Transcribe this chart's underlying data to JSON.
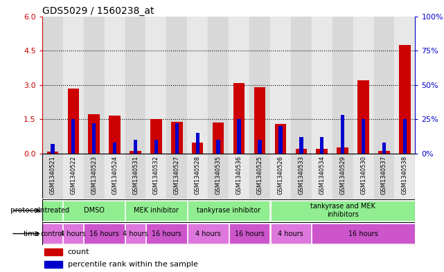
{
  "title": "GDS5029 / 1560238_at",
  "samples": [
    "GSM1340521",
    "GSM1340522",
    "GSM1340523",
    "GSM1340524",
    "GSM1340531",
    "GSM1340532",
    "GSM1340527",
    "GSM1340528",
    "GSM1340535",
    "GSM1340536",
    "GSM1340525",
    "GSM1340526",
    "GSM1340533",
    "GSM1340534",
    "GSM1340529",
    "GSM1340530",
    "GSM1340537",
    "GSM1340538"
  ],
  "count_values": [
    0.08,
    2.85,
    1.72,
    1.65,
    0.12,
    1.5,
    1.4,
    0.5,
    1.35,
    3.1,
    2.9,
    1.3,
    0.2,
    0.2,
    0.28,
    3.2,
    0.12,
    4.75
  ],
  "percentile_values": [
    7,
    25,
    22,
    8,
    10,
    10,
    22,
    15,
    10,
    25,
    10,
    20,
    12,
    12,
    28,
    25,
    8,
    25
  ],
  "ylim_left": [
    0,
    6
  ],
  "ylim_right": [
    0,
    100
  ],
  "yticks_left": [
    0,
    1.5,
    3.0,
    4.5,
    6
  ],
  "yticks_right": [
    0,
    25,
    50,
    75,
    100
  ],
  "bar_color_red": "#cc0000",
  "bar_color_blue": "#0000cc",
  "bg_color": "#ffffff",
  "protocol_groups": [
    {
      "label": "untreated",
      "start": 0,
      "end": 1
    },
    {
      "label": "DMSO",
      "start": 1,
      "end": 4
    },
    {
      "label": "MEK inhibitor",
      "start": 4,
      "end": 7
    },
    {
      "label": "tankyrase inhibitor",
      "start": 7,
      "end": 11
    },
    {
      "label": "tankyrase and MEK\ninhibitors",
      "start": 11,
      "end": 18
    }
  ],
  "time_groups": [
    {
      "label": "control",
      "start": 0,
      "end": 1,
      "color": "#dd77dd"
    },
    {
      "label": "4 hours",
      "start": 1,
      "end": 2,
      "color": "#dd77dd"
    },
    {
      "label": "16 hours",
      "start": 2,
      "end": 4,
      "color": "#cc55cc"
    },
    {
      "label": "4 hours",
      "start": 4,
      "end": 5,
      "color": "#dd77dd"
    },
    {
      "label": "16 hours",
      "start": 5,
      "end": 7,
      "color": "#cc55cc"
    },
    {
      "label": "4 hours",
      "start": 7,
      "end": 9,
      "color": "#dd77dd"
    },
    {
      "label": "16 hours",
      "start": 9,
      "end": 11,
      "color": "#cc55cc"
    },
    {
      "label": "4 hours",
      "start": 11,
      "end": 13,
      "color": "#dd77dd"
    },
    {
      "label": "16 hours",
      "start": 13,
      "end": 18,
      "color": "#cc55cc"
    }
  ],
  "protocol_color": "#90ee90",
  "col_bg_even": "#d8d8d8",
  "col_bg_odd": "#e8e8e8"
}
